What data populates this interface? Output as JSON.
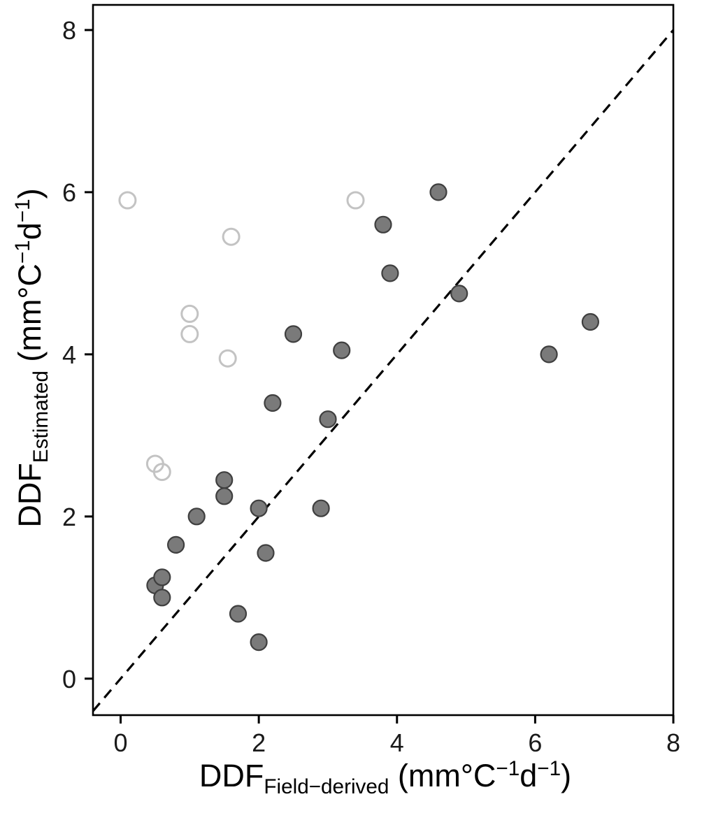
{
  "chart_data": {
    "type": "scatter",
    "title": "",
    "xlabel_parts": {
      "prefix": "DDF",
      "sub": "Field−derived",
      "unit_open": " (mm°C",
      "sup1": "−1",
      "mid": "d",
      "sup2": "−1",
      "close": ")"
    },
    "ylabel_parts": {
      "prefix": "DDF",
      "sub": "Estimated",
      "unit_open": " (mm°C",
      "sup1": "−1",
      "mid": "d",
      "sup2": "−1",
      "close": ")"
    },
    "xlim": [
      -0.4,
      8.0
    ],
    "ylim": [
      -0.45,
      8.31
    ],
    "xticks": [
      0,
      2,
      4,
      6,
      8
    ],
    "yticks": [
      0,
      2,
      4,
      6,
      8
    ],
    "grid": false,
    "legend": "none",
    "identity_line": true,
    "identity_line_style": "dashed",
    "identity_line_color": "#000000",
    "series": [
      {
        "name": "filled-gray-circles",
        "marker": "filled-circle",
        "fill": "#7a7a7a",
        "stroke": "#3f3f3f",
        "points": [
          [
            0.5,
            1.15
          ],
          [
            0.6,
            1.25
          ],
          [
            0.6,
            1.0
          ],
          [
            0.8,
            1.65
          ],
          [
            1.1,
            2.0
          ],
          [
            1.5,
            2.45
          ],
          [
            1.5,
            2.25
          ],
          [
            1.7,
            0.8
          ],
          [
            2.0,
            2.1
          ],
          [
            2.0,
            0.45
          ],
          [
            2.1,
            1.55
          ],
          [
            2.2,
            3.4
          ],
          [
            2.5,
            4.25
          ],
          [
            2.9,
            2.1
          ],
          [
            3.0,
            3.2
          ],
          [
            3.2,
            4.05
          ],
          [
            3.8,
            5.6
          ],
          [
            3.9,
            5.0
          ],
          [
            4.6,
            6.0
          ],
          [
            4.9,
            4.75
          ],
          [
            6.2,
            4.0
          ],
          [
            6.8,
            4.4
          ]
        ]
      },
      {
        "name": "open-light-gray-circles",
        "marker": "open-circle",
        "fill": "none",
        "stroke": "#c3c3c3",
        "points": [
          [
            0.1,
            5.9
          ],
          [
            0.5,
            2.65
          ],
          [
            0.6,
            2.55
          ],
          [
            1.0,
            4.5
          ],
          [
            1.0,
            4.25
          ],
          [
            1.55,
            3.95
          ],
          [
            1.6,
            5.45
          ],
          [
            3.4,
            5.9
          ]
        ]
      }
    ]
  }
}
